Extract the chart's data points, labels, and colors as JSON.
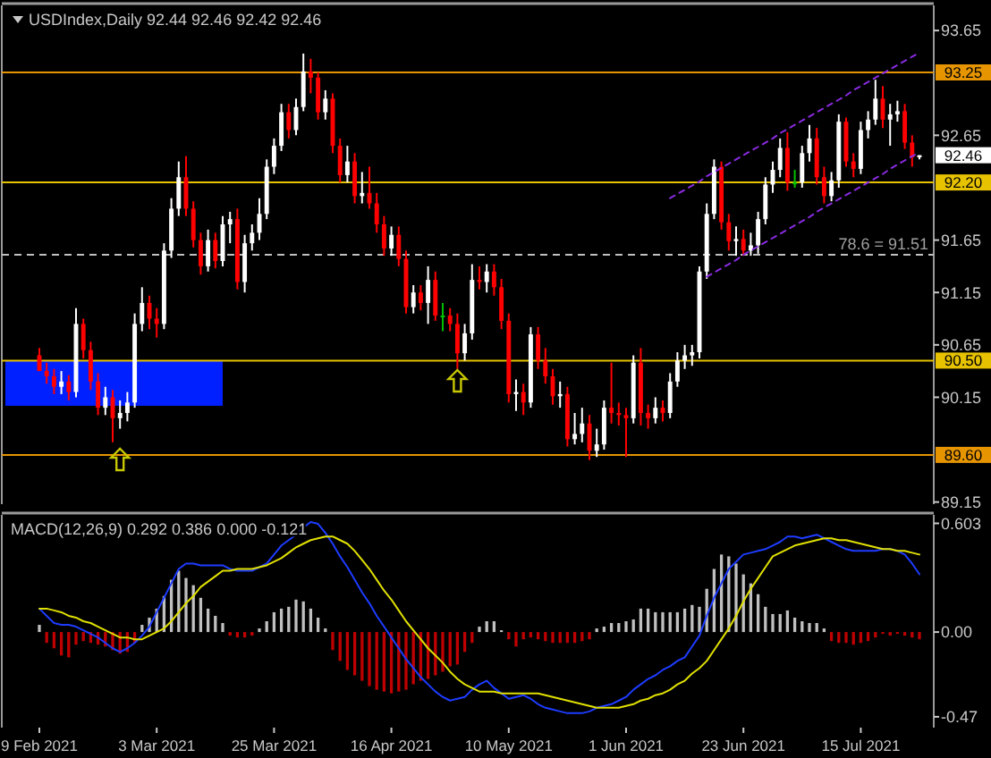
{
  "chart_data": [
    {
      "type": "candlestick",
      "title": "USDIndex,Daily 92.44 92.46 92.42 92.46",
      "categories": [
        null,
        null,
        null,
        null,
        null,
        null,
        null,
        null,
        null,
        null,
        null,
        null,
        null,
        null,
        null,
        null,
        null,
        null,
        null,
        null,
        null,
        null,
        null,
        null,
        null,
        null,
        null,
        null,
        null,
        null,
        null,
        null,
        null,
        null,
        null,
        null,
        null,
        null,
        null,
        null,
        null,
        null,
        null,
        null,
        null,
        null,
        null,
        null,
        null,
        null,
        null,
        null,
        null,
        null,
        null,
        null,
        null,
        null,
        null,
        null,
        null,
        null,
        null,
        null,
        null,
        null,
        null,
        null,
        null,
        null,
        null,
        null,
        null,
        null,
        null,
        null,
        null,
        null,
        null,
        null,
        null,
        null,
        null,
        null,
        null,
        null,
        null,
        null,
        null,
        null,
        null,
        null,
        null,
        null,
        null,
        null,
        null,
        null,
        null,
        null,
        null,
        null,
        null,
        null,
        null,
        null,
        null,
        null,
        null,
        null,
        null,
        null,
        null,
        null,
        null,
        null,
        null,
        null,
        null,
        null,
        null
      ],
      "ohlc": [
        [
          90.55,
          90.62,
          90.4,
          90.4
        ],
        [
          90.4,
          90.48,
          90.28,
          90.35
        ],
        [
          90.35,
          90.42,
          90.18,
          90.25
        ],
        [
          90.25,
          90.4,
          90.18,
          90.3
        ],
        [
          90.3,
          90.36,
          90.12,
          90.2
        ],
        [
          90.2,
          91.0,
          90.15,
          90.85
        ],
        [
          90.85,
          90.9,
          90.52,
          90.6
        ],
        [
          90.6,
          90.68,
          90.22,
          90.3
        ],
        [
          90.3,
          90.38,
          89.98,
          90.05
        ],
        [
          90.05,
          90.25,
          89.98,
          90.15
        ],
        [
          90.15,
          90.22,
          89.72,
          89.95
        ],
        [
          89.95,
          90.12,
          89.85,
          90.0
        ],
        [
          90.0,
          90.2,
          89.92,
          90.1
        ],
        [
          90.1,
          90.95,
          90.05,
          90.85
        ],
        [
          90.85,
          91.2,
          90.78,
          91.05
        ],
        [
          91.05,
          91.12,
          90.8,
          90.9
        ],
        [
          90.9,
          91.0,
          90.72,
          90.85
        ],
        [
          90.85,
          91.62,
          90.8,
          91.55
        ],
        [
          91.55,
          92.05,
          91.48,
          91.95
        ],
        [
          91.95,
          92.4,
          91.88,
          92.25
        ],
        [
          92.25,
          92.45,
          91.88,
          91.95
        ],
        [
          91.95,
          92.02,
          91.58,
          91.65
        ],
        [
          91.65,
          91.72,
          91.32,
          91.4
        ],
        [
          91.4,
          91.75,
          91.35,
          91.65
        ],
        [
          91.65,
          91.72,
          91.38,
          91.45
        ],
        [
          91.45,
          91.88,
          91.4,
          91.8
        ],
        [
          91.8,
          91.92,
          91.62,
          91.85
        ],
        [
          91.85,
          91.95,
          91.18,
          91.25
        ],
        [
          91.25,
          91.7,
          91.15,
          91.62
        ],
        [
          91.62,
          91.8,
          91.55,
          91.72
        ],
        [
          91.72,
          92.05,
          91.65,
          91.9
        ],
        [
          91.9,
          92.42,
          91.85,
          92.35
        ],
        [
          92.35,
          92.62,
          92.28,
          92.55
        ],
        [
          92.55,
          92.95,
          92.5,
          92.87
        ],
        [
          92.87,
          92.95,
          92.62,
          92.7
        ],
        [
          92.7,
          93.0,
          92.65,
          92.92
        ],
        [
          92.92,
          93.43,
          92.88,
          93.26
        ],
        [
          93.26,
          93.38,
          93.05,
          93.2
        ],
        [
          93.2,
          93.25,
          92.8,
          92.87
        ],
        [
          92.87,
          93.08,
          92.8,
          93.0
        ],
        [
          93.0,
          93.05,
          92.48,
          92.55
        ],
        [
          92.55,
          92.62,
          92.2,
          92.27
        ],
        [
          92.27,
          92.55,
          92.2,
          92.4
        ],
        [
          92.4,
          92.48,
          92.0,
          92.07
        ],
        [
          92.07,
          92.3,
          92.0,
          92.1
        ],
        [
          92.1,
          92.35,
          91.95,
          92.0
        ],
        [
          92.0,
          92.1,
          91.72,
          91.8
        ],
        [
          91.8,
          91.88,
          91.5,
          91.57
        ],
        [
          91.57,
          91.78,
          91.5,
          91.7
        ],
        [
          91.7,
          91.78,
          91.4,
          91.47
        ],
        [
          91.47,
          91.55,
          90.95,
          91.01
        ],
        [
          91.01,
          91.22,
          90.95,
          91.15
        ],
        [
          91.15,
          91.22,
          90.98,
          91.05
        ],
        [
          91.05,
          91.4,
          90.85,
          91.27
        ],
        [
          91.27,
          91.35,
          90.88,
          90.93
        ],
        [
          90.93,
          91.05,
          90.78,
          90.93
        ],
        [
          90.93,
          91.0,
          90.78,
          90.85
        ],
        [
          90.85,
          90.95,
          90.42,
          90.57
        ],
        [
          90.57,
          90.85,
          90.5,
          90.76
        ],
        [
          90.76,
          91.42,
          90.7,
          91.27
        ],
        [
          91.27,
          91.4,
          91.18,
          91.25
        ],
        [
          91.25,
          91.42,
          91.15,
          91.35
        ],
        [
          91.35,
          91.42,
          91.12,
          91.2
        ],
        [
          91.2,
          91.28,
          90.8,
          90.88
        ],
        [
          90.88,
          90.95,
          90.1,
          90.18
        ],
        [
          90.18,
          90.32,
          90.02,
          90.2
        ],
        [
          90.2,
          90.28,
          89.98,
          90.1
        ],
        [
          90.1,
          90.82,
          90.05,
          90.75
        ],
        [
          90.75,
          90.82,
          90.42,
          90.5
        ],
        [
          90.5,
          90.62,
          90.28,
          90.35
        ],
        [
          90.35,
          90.42,
          90.08,
          90.16
        ],
        [
          90.16,
          90.3,
          90.05,
          90.18
        ],
        [
          90.18,
          90.25,
          89.68,
          89.75
        ],
        [
          89.75,
          90.0,
          89.7,
          89.8
        ],
        [
          89.8,
          90.05,
          89.72,
          89.9
        ],
        [
          89.9,
          89.98,
          89.55,
          89.64
        ],
        [
          89.64,
          89.85,
          89.58,
          89.7
        ],
        [
          89.7,
          90.12,
          89.65,
          90.05
        ],
        [
          90.05,
          90.48,
          89.9,
          90.0
        ],
        [
          90.0,
          90.1,
          89.88,
          89.98
        ],
        [
          89.98,
          90.05,
          89.58,
          89.95
        ],
        [
          89.95,
          90.55,
          89.9,
          90.48
        ],
        [
          90.48,
          90.62,
          89.88,
          90.0
        ],
        [
          90.0,
          90.08,
          89.85,
          89.95
        ],
        [
          89.95,
          90.15,
          89.9,
          90.05
        ],
        [
          90.05,
          90.12,
          89.92,
          90.0
        ],
        [
          90.0,
          90.38,
          89.95,
          90.3
        ],
        [
          90.3,
          90.58,
          90.25,
          90.5
        ],
        [
          90.5,
          90.65,
          90.42,
          90.55
        ],
        [
          90.55,
          90.65,
          90.45,
          90.58
        ],
        [
          90.58,
          91.4,
          90.52,
          91.35
        ],
        [
          91.35,
          92.0,
          91.28,
          91.9
        ],
        [
          91.9,
          92.42,
          91.85,
          92.35
        ],
        [
          92.35,
          92.4,
          91.75,
          91.82
        ],
        [
          91.82,
          91.9,
          91.55,
          91.64
        ],
        [
          91.64,
          91.78,
          91.5,
          91.66
        ],
        [
          91.66,
          91.75,
          91.5,
          91.55
        ],
        [
          91.55,
          91.72,
          91.5,
          91.6
        ],
        [
          91.6,
          91.92,
          91.52,
          91.85
        ],
        [
          91.85,
          92.25,
          91.8,
          92.18
        ],
        [
          92.18,
          92.4,
          92.1,
          92.32
        ],
        [
          92.32,
          92.62,
          92.25,
          92.53
        ],
        [
          92.53,
          92.68,
          92.12,
          92.2
        ],
        [
          92.2,
          92.32,
          92.15,
          92.2
        ],
        [
          92.2,
          92.55,
          92.15,
          92.48
        ],
        [
          92.48,
          92.75,
          92.4,
          92.62
        ],
        [
          92.62,
          92.72,
          92.18,
          92.25
        ],
        [
          92.25,
          92.35,
          92.0,
          92.07
        ],
        [
          92.07,
          92.3,
          92.02,
          92.22
        ],
        [
          92.22,
          92.85,
          92.15,
          92.78
        ],
        [
          92.78,
          92.82,
          92.35,
          92.4
        ],
        [
          92.4,
          92.48,
          92.25,
          92.33
        ],
        [
          92.33,
          92.78,
          92.28,
          92.7
        ],
        [
          92.7,
          92.88,
          92.62,
          92.8
        ],
        [
          92.8,
          93.18,
          92.75,
          93.0
        ],
        [
          93.0,
          93.12,
          92.72,
          92.8
        ],
        [
          92.8,
          92.95,
          92.55,
          92.85
        ],
        [
          92.85,
          92.98,
          92.78,
          92.88
        ],
        [
          92.88,
          92.95,
          92.52,
          92.58
        ],
        [
          92.58,
          92.65,
          92.35,
          92.44
        ],
        [
          92.44,
          92.46,
          92.42,
          92.46
        ]
      ],
      "colors": [
        "#ff0000",
        "#ff0000",
        "#ff0000",
        "#ffffff",
        "#ff0000",
        "#ffffff",
        "#ff0000",
        "#ff0000",
        "#ff0000",
        "#ffffff",
        "#ff0000",
        "#ffffff",
        "#ffffff",
        "#ffffff",
        "#ffffff",
        "#ff0000",
        "#ff0000",
        "#ffffff",
        "#ffffff",
        "#ffffff",
        "#ff0000",
        "#ff0000",
        "#ff0000",
        "#ffffff",
        "#ff0000",
        "#ffffff",
        "#ffffff",
        "#ff0000",
        "#ffffff",
        "#ffffff",
        "#ffffff",
        "#ffffff",
        "#ffffff",
        "#ffffff",
        "#ff0000",
        "#ffffff",
        "#ffffff",
        "#ff0000",
        "#ff0000",
        "#ffffff",
        "#ff0000",
        "#ff0000",
        "#ffffff",
        "#ff0000",
        "#ffffff",
        "#ff0000",
        "#ff0000",
        "#ff0000",
        "#ffffff",
        "#ff0000",
        "#ff0000",
        "#ffffff",
        "#ff0000",
        "#ffffff",
        "#ff0000",
        "#00c000",
        "#ff0000",
        "#ff0000",
        "#ffffff",
        "#ffffff",
        "#ff0000",
        "#ffffff",
        "#ff0000",
        "#ff0000",
        "#ff0000",
        "#ffffff",
        "#ff0000",
        "#ffffff",
        "#ff0000",
        "#ff0000",
        "#ff0000",
        "#ffffff",
        "#ff0000",
        "#ffffff",
        "#ffffff",
        "#ff0000",
        "#ffffff",
        "#ffffff",
        "#ff0000",
        "#ff0000",
        "#ff0000",
        "#ffffff",
        "#ff0000",
        "#ff0000",
        "#ffffff",
        "#ff0000",
        "#ffffff",
        "#ffffff",
        "#ffffff",
        "#ffffff",
        "#ffffff",
        "#ffffff",
        "#ffffff",
        "#ff0000",
        "#ff0000",
        "#ffffff",
        "#ff0000",
        "#ffffff",
        "#ffffff",
        "#ffffff",
        "#ffffff",
        "#ffffff",
        "#ff0000",
        "#00c000",
        "#ffffff",
        "#ffffff",
        "#ff0000",
        "#ff0000",
        "#ffffff",
        "#ffffff",
        "#ff0000",
        "#ff0000",
        "#ffffff",
        "#ffffff",
        "#ffffff",
        "#ff0000",
        "#ffffff",
        "#ffffff",
        "#ff0000",
        "#ff0000",
        "#ffffff"
      ],
      "series": [
        {
          "type": "line",
          "color": "#8a2be2",
          "line_style": "dashed",
          "values": [
            null,
            null,
            null,
            null,
            null,
            null,
            null,
            null,
            null,
            null,
            null,
            null,
            null,
            null,
            null,
            null,
            null,
            null,
            null,
            null,
            null,
            null,
            null,
            null,
            null,
            null,
            null,
            null,
            null,
            null,
            null,
            null,
            null,
            null,
            null,
            null,
            null,
            null,
            null,
            null,
            null,
            null,
            null,
            null,
            null,
            null,
            null,
            null,
            null,
            null,
            null,
            null,
            null,
            null,
            null,
            null,
            null,
            null,
            null,
            null,
            null,
            null,
            null,
            null,
            null,
            null,
            null,
            null,
            null,
            null,
            null,
            null,
            null,
            null,
            null,
            null,
            null,
            null,
            null,
            null,
            null,
            null,
            null,
            null,
            null,
            null,
            92.05,
            92.09,
            92.13,
            92.17,
            92.21,
            92.26,
            92.3,
            92.34,
            92.38,
            92.42,
            92.46,
            92.5,
            92.54,
            92.58,
            92.62,
            92.67,
            92.71,
            92.75,
            92.79,
            92.83,
            92.87,
            92.91,
            92.95,
            92.99,
            93.03,
            93.08,
            93.12,
            93.16,
            93.2,
            93.24,
            93.28,
            93.32,
            93.36,
            93.4,
            93.44
          ]
        },
        {
          "type": "line",
          "color": "#8a2be2",
          "line_style": "dashed",
          "values": [
            null,
            null,
            null,
            null,
            null,
            null,
            null,
            null,
            null,
            null,
            null,
            null,
            null,
            null,
            null,
            null,
            null,
            null,
            null,
            null,
            null,
            null,
            null,
            null,
            null,
            null,
            null,
            null,
            null,
            null,
            null,
            null,
            null,
            null,
            null,
            null,
            null,
            null,
            null,
            null,
            null,
            null,
            null,
            null,
            null,
            null,
            null,
            null,
            null,
            null,
            null,
            null,
            null,
            null,
            null,
            null,
            null,
            null,
            null,
            null,
            null,
            null,
            null,
            null,
            null,
            null,
            null,
            null,
            null,
            null,
            null,
            null,
            null,
            null,
            null,
            null,
            null,
            null,
            null,
            null,
            null,
            null,
            null,
            null,
            null,
            null,
            null,
            null,
            null,
            null,
            null,
            91.3,
            91.34,
            91.38,
            91.42,
            91.46,
            91.51,
            91.55,
            91.59,
            91.63,
            91.67,
            91.71,
            91.75,
            91.79,
            91.83,
            91.87,
            91.92,
            91.96,
            92.0,
            92.04,
            92.08,
            92.12,
            92.16,
            92.2,
            92.24,
            92.28,
            92.33,
            92.37,
            92.41,
            92.45,
            92.49
          ]
        }
      ],
      "ylim": [
        89.13,
        93.89
      ],
      "yticks": [
        93.65,
        92.65,
        91.65,
        91.15,
        90.65,
        90.15,
        89.15
      ],
      "tick_labels": "y",
      "ref_lines": [
        {
          "axis": "y",
          "value": 93.25,
          "label": "93.25",
          "color": "#e69500"
        },
        {
          "axis": "y",
          "value": 92.2,
          "label": "92.20",
          "color": "#e6c200"
        },
        {
          "axis": "y",
          "value": 91.51,
          "label": "78.6 = 91.51",
          "color": "#c0c0c0",
          "line_style": "dashed"
        },
        {
          "axis": "y",
          "value": 90.5,
          "label": "90.50",
          "color": "#e6c200"
        },
        {
          "axis": "y",
          "value": 89.6,
          "label": "89.60",
          "color": "#e69500"
        }
      ],
      "annotations": [
        "92.46"
      ]
    },
    {
      "type": "bar",
      "title": "MACD(12,26,9) 0.292 0.386 0.000 -0.121",
      "categories": [
        "9 Feb 2021",
        null,
        null,
        null,
        null,
        null,
        null,
        null,
        null,
        null,
        null,
        null,
        null,
        null,
        null,
        null,
        "3 Mar 2021",
        null,
        null,
        null,
        null,
        null,
        null,
        null,
        null,
        null,
        null,
        null,
        null,
        null,
        null,
        null,
        "25 Mar 2021",
        null,
        null,
        null,
        null,
        null,
        null,
        null,
        null,
        null,
        null,
        null,
        null,
        null,
        null,
        null,
        "16 Apr 2021",
        null,
        null,
        null,
        null,
        null,
        null,
        null,
        null,
        null,
        null,
        null,
        null,
        null,
        null,
        null,
        "10 May 2021",
        null,
        null,
        null,
        null,
        null,
        null,
        null,
        null,
        null,
        null,
        null,
        null,
        null,
        null,
        null,
        "1 Jun 2021",
        null,
        null,
        null,
        null,
        null,
        null,
        null,
        null,
        null,
        null,
        null,
        null,
        null,
        null,
        null,
        "23 Jun 2021",
        null,
        null,
        null,
        null,
        null,
        null,
        null,
        null,
        null,
        null,
        null,
        null,
        null,
        null,
        null,
        "15 Jul 2021",
        null,
        null,
        null,
        null,
        null,
        null,
        null,
        null
      ],
      "series": [
        {
          "type": "bar",
          "values": [
            0.04,
            -0.06,
            -0.09,
            -0.13,
            -0.14,
            -0.07,
            -0.05,
            -0.06,
            -0.07,
            -0.08,
            -0.1,
            -0.12,
            -0.11,
            -0.06,
            0.04,
            0.08,
            0.13,
            0.2,
            0.29,
            0.34,
            0.3,
            0.26,
            0.19,
            0.13,
            0.09,
            0.05,
            -0.02,
            -0.03,
            -0.03,
            -0.02,
            0.02,
            0.06,
            0.11,
            0.13,
            0.14,
            0.18,
            0.17,
            0.13,
            0.08,
            0.02,
            -0.1,
            -0.16,
            -0.21,
            -0.24,
            -0.27,
            -0.3,
            -0.32,
            -0.33,
            -0.34,
            -0.33,
            -0.32,
            -0.29,
            -0.27,
            -0.26,
            -0.24,
            -0.22,
            -0.19,
            -0.18,
            -0.11,
            -0.06,
            0.03,
            0.06,
            0.06,
            0.01,
            -0.04,
            -0.08,
            -0.04,
            -0.03,
            -0.04,
            -0.05,
            -0.06,
            -0.06,
            -0.06,
            -0.06,
            -0.05,
            -0.04,
            0.02,
            0.03,
            0.05,
            0.05,
            0.06,
            0.07,
            0.13,
            0.13,
            0.11,
            0.11,
            0.11,
            0.11,
            0.13,
            0.15,
            0.14,
            0.24,
            0.35,
            0.43,
            0.42,
            0.38,
            0.32,
            0.27,
            0.21,
            0.14,
            0.1,
            0.1,
            0.12,
            0.08,
            0.06,
            0.05,
            0.05,
            0.02,
            -0.05,
            -0.06,
            -0.06,
            -0.07,
            -0.06,
            -0.05,
            -0.03,
            -0.01,
            -0.02,
            -0.01,
            -0.02,
            -0.03,
            -0.04
          ],
          "colors": [
            "#c0c0c0",
            "#c00000",
            "#c00000",
            "#c00000",
            "#c00000",
            "#c00000",
            "#c00000",
            "#c00000",
            "#c00000",
            "#c00000",
            "#c00000",
            "#c00000",
            "#c00000",
            "#c00000",
            "#c0c0c0",
            "#c0c0c0",
            "#c0c0c0",
            "#c0c0c0",
            "#c0c0c0",
            "#c0c0c0",
            "#c0c0c0",
            "#c0c0c0",
            "#c0c0c0",
            "#c0c0c0",
            "#c0c0c0",
            "#c0c0c0",
            "#c00000",
            "#c00000",
            "#c00000",
            "#c00000",
            "#c0c0c0",
            "#c0c0c0",
            "#c0c0c0",
            "#c0c0c0",
            "#c0c0c0",
            "#c0c0c0",
            "#c0c0c0",
            "#c0c0c0",
            "#c0c0c0",
            "#c0c0c0",
            "#c00000",
            "#c00000",
            "#c00000",
            "#c00000",
            "#c00000",
            "#c00000",
            "#c00000",
            "#c00000",
            "#c00000",
            "#c00000",
            "#c00000",
            "#c00000",
            "#c00000",
            "#c00000",
            "#c00000",
            "#c00000",
            "#c00000",
            "#c00000",
            "#c00000",
            "#c00000",
            "#c0c0c0",
            "#c0c0c0",
            "#c0c0c0",
            "#c0c0c0",
            "#c00000",
            "#c00000",
            "#c00000",
            "#c00000",
            "#c00000",
            "#c00000",
            "#c00000",
            "#c00000",
            "#c00000",
            "#c00000",
            "#c00000",
            "#c00000",
            "#c0c0c0",
            "#c0c0c0",
            "#c0c0c0",
            "#c0c0c0",
            "#c0c0c0",
            "#c0c0c0",
            "#c0c0c0",
            "#c0c0c0",
            "#c0c0c0",
            "#c0c0c0",
            "#c0c0c0",
            "#c0c0c0",
            "#c0c0c0",
            "#c0c0c0",
            "#c0c0c0",
            "#c0c0c0",
            "#c0c0c0",
            "#c0c0c0",
            "#c0c0c0",
            "#c0c0c0",
            "#c0c0c0",
            "#c0c0c0",
            "#c0c0c0",
            "#c0c0c0",
            "#c0c0c0",
            "#c0c0c0",
            "#c0c0c0",
            "#c0c0c0",
            "#c0c0c0",
            "#c0c0c0",
            "#c0c0c0",
            "#c0c0c0",
            "#c00000",
            "#c00000",
            "#c00000",
            "#c00000",
            "#c00000",
            "#c00000",
            "#c00000",
            "#c00000",
            "#c00000",
            "#c00000",
            "#c00000",
            "#c00000",
            "#c00000"
          ]
        },
        {
          "type": "line",
          "color": "#1e3cff",
          "values": [
            0.13,
            0.09,
            0.05,
            0.04,
            0.04,
            0.03,
            0.01,
            -0.01,
            -0.03,
            -0.06,
            -0.09,
            -0.11,
            -0.09,
            -0.06,
            -0.02,
            0.03,
            0.11,
            0.19,
            0.27,
            0.35,
            0.38,
            0.38,
            0.37,
            0.37,
            0.37,
            0.37,
            0.35,
            0.34,
            0.34,
            0.34,
            0.36,
            0.38,
            0.43,
            0.48,
            0.51,
            0.54,
            0.58,
            0.61,
            0.6,
            0.55,
            0.49,
            0.42,
            0.36,
            0.29,
            0.22,
            0.16,
            0.09,
            0.03,
            -0.03,
            -0.09,
            -0.15,
            -0.2,
            -0.25,
            -0.29,
            -0.33,
            -0.36,
            -0.38,
            -0.37,
            -0.36,
            -0.32,
            -0.29,
            -0.27,
            -0.31,
            -0.34,
            -0.37,
            -0.36,
            -0.35,
            -0.37,
            -0.4,
            -0.42,
            -0.43,
            -0.44,
            -0.45,
            -0.45,
            -0.45,
            -0.44,
            -0.42,
            -0.41,
            -0.4,
            -0.38,
            -0.36,
            -0.32,
            -0.29,
            -0.26,
            -0.24,
            -0.21,
            -0.19,
            -0.16,
            -0.14,
            -0.08,
            -0.02,
            0.09,
            0.19,
            0.27,
            0.35,
            0.39,
            0.43,
            0.44,
            0.45,
            0.46,
            0.48,
            0.5,
            0.53,
            0.53,
            0.52,
            0.53,
            0.54,
            0.52,
            0.5,
            0.48,
            0.46,
            0.45,
            0.45,
            0.45,
            0.45,
            0.46,
            0.46,
            0.45,
            0.43,
            0.38,
            0.32
          ]
        },
        {
          "type": "line",
          "color": "#e0e000",
          "values": [
            0.13,
            0.13,
            0.12,
            0.11,
            0.09,
            0.08,
            0.06,
            0.05,
            0.03,
            0.01,
            -0.01,
            -0.03,
            -0.03,
            -0.04,
            -0.04,
            -0.02,
            0.0,
            0.02,
            0.06,
            0.11,
            0.16,
            0.2,
            0.25,
            0.28,
            0.31,
            0.34,
            0.34,
            0.35,
            0.35,
            0.35,
            0.36,
            0.37,
            0.39,
            0.41,
            0.44,
            0.47,
            0.49,
            0.51,
            0.52,
            0.53,
            0.53,
            0.51,
            0.49,
            0.45,
            0.4,
            0.35,
            0.29,
            0.23,
            0.18,
            0.12,
            0.06,
            0.01,
            -0.04,
            -0.09,
            -0.13,
            -0.17,
            -0.22,
            -0.26,
            -0.29,
            -0.31,
            -0.33,
            -0.33,
            -0.33,
            -0.34,
            -0.34,
            -0.34,
            -0.34,
            -0.34,
            -0.34,
            -0.35,
            -0.36,
            -0.37,
            -0.38,
            -0.39,
            -0.4,
            -0.41,
            -0.42,
            -0.42,
            -0.42,
            -0.42,
            -0.41,
            -0.4,
            -0.38,
            -0.37,
            -0.35,
            -0.34,
            -0.32,
            -0.29,
            -0.27,
            -0.23,
            -0.2,
            -0.16,
            -0.1,
            -0.04,
            0.02,
            0.09,
            0.17,
            0.24,
            0.3,
            0.36,
            0.42,
            0.44,
            0.46,
            0.48,
            0.49,
            0.5,
            0.51,
            0.52,
            0.52,
            0.51,
            0.51,
            0.5,
            0.49,
            0.48,
            0.47,
            0.46,
            0.46,
            0.45,
            0.45,
            0.44,
            0.43
          ]
        }
      ],
      "ylim": [
        -0.53,
        0.65
      ],
      "yticks": [
        0.603,
        {
          "value": 0,
          "label": "0.00"
        },
        {
          "value": -0.47,
          "label": "-0.47"
        }
      ]
    }
  ]
}
